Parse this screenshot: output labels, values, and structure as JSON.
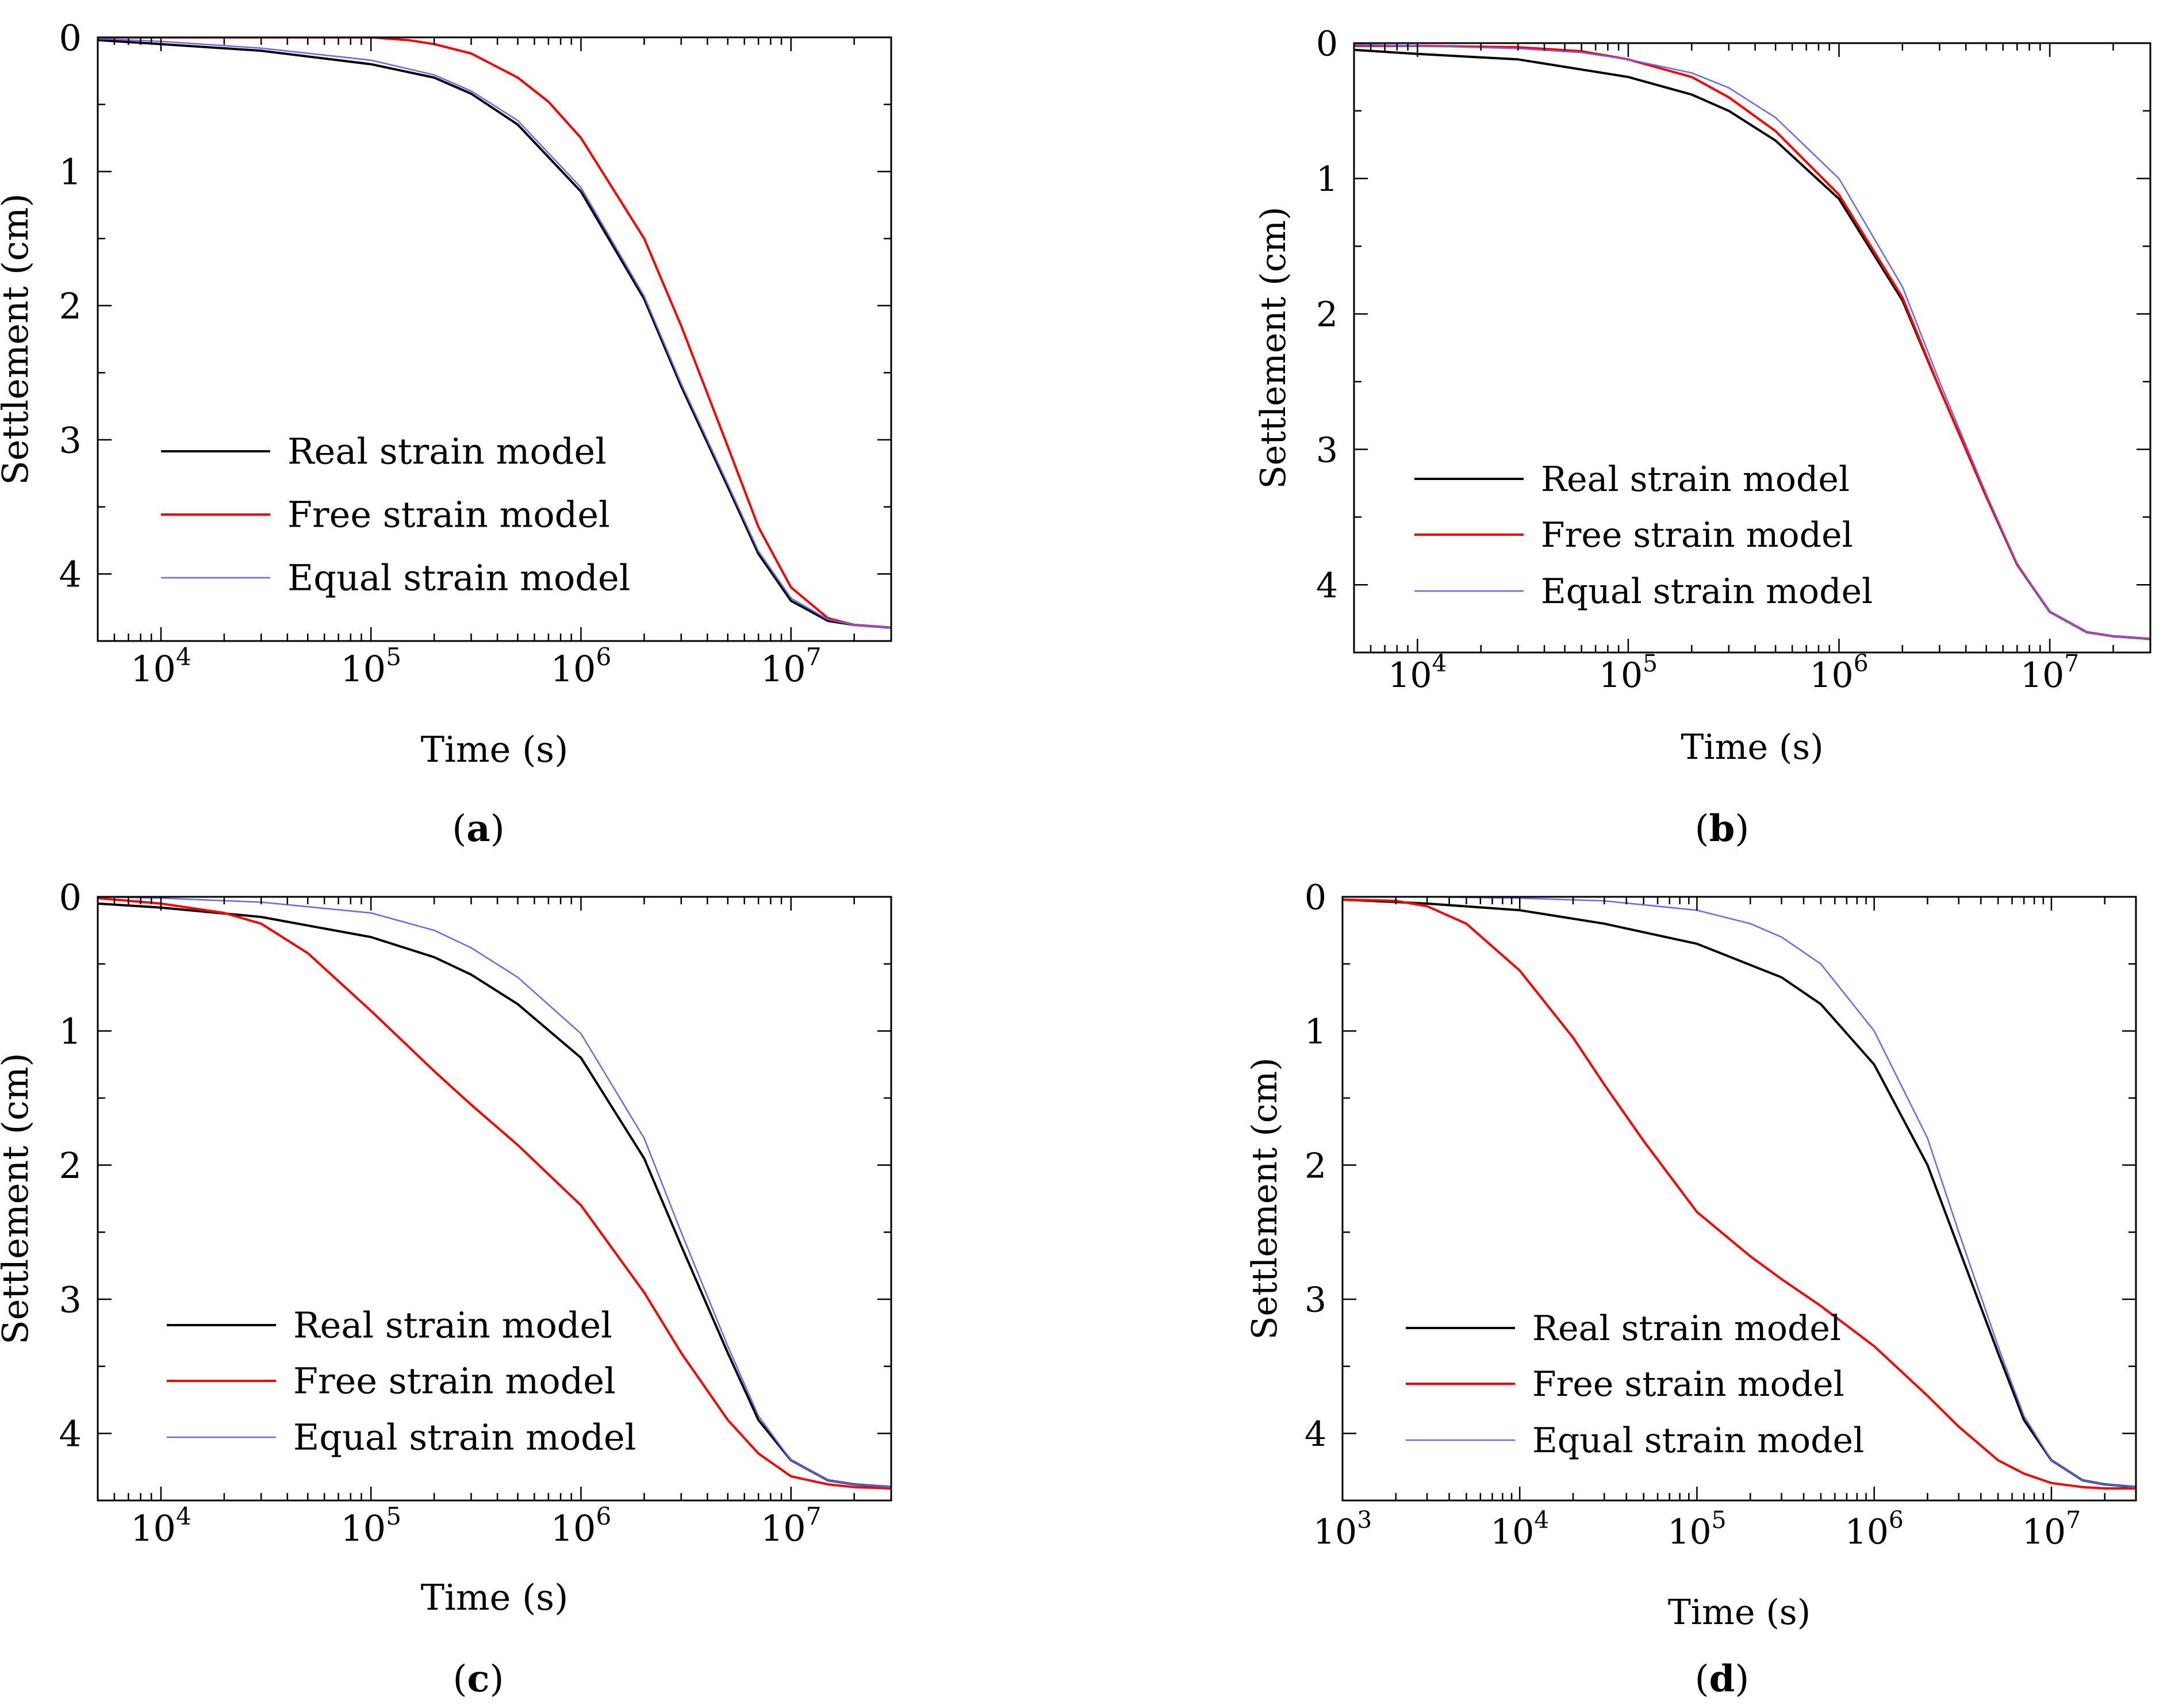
{
  "chart_data": [
    {
      "type": "line",
      "panel_label": "a",
      "xlabel": "Time (s)",
      "ylabel": "Settlement (cm)",
      "xscale": "log",
      "xlim": [
        5000,
        30000000
      ],
      "ylim": [
        0,
        4.5
      ],
      "y_inverted": true,
      "x_ticks": [
        {
          "base": "10",
          "exp": "4",
          "value": 10000
        },
        {
          "base": "10",
          "exp": "5",
          "value": 100000
        },
        {
          "base": "10",
          "exp": "6",
          "value": 1000000
        },
        {
          "base": "10",
          "exp": "7",
          "value": 10000000
        }
      ],
      "y_ticks": [
        "0",
        "1",
        "2",
        "3",
        "4"
      ],
      "legend_position": "center-left",
      "series": [
        {
          "name": "Real strain model",
          "color": "#000000",
          "x": [
            5000,
            10000,
            30000,
            100000,
            200000,
            300000,
            500000,
            1000000,
            2000000,
            3000000,
            5000000,
            7000000,
            10000000,
            15000000,
            20000000,
            30000000
          ],
          "values": [
            0.02,
            0.05,
            0.1,
            0.2,
            0.3,
            0.42,
            0.65,
            1.15,
            1.95,
            2.6,
            3.35,
            3.85,
            4.2,
            4.35,
            4.38,
            4.4
          ]
        },
        {
          "name": "Free strain model",
          "color": "#ff0000",
          "x": [
            5000,
            10000,
            50000,
            100000,
            150000,
            200000,
            300000,
            500000,
            700000,
            1000000,
            2000000,
            3000000,
            5000000,
            7000000,
            10000000,
            15000000,
            20000000,
            30000000
          ],
          "values": [
            0.0,
            0.0,
            0.0,
            0.0,
            0.02,
            0.05,
            0.12,
            0.3,
            0.48,
            0.75,
            1.5,
            2.15,
            3.05,
            3.65,
            4.1,
            4.33,
            4.38,
            4.4
          ]
        },
        {
          "name": "Equal strain model",
          "color": "#6666ff",
          "x": [
            5000,
            10000,
            30000,
            100000,
            200000,
            300000,
            500000,
            1000000,
            2000000,
            3000000,
            5000000,
            7000000,
            10000000,
            15000000,
            20000000,
            30000000
          ],
          "values": [
            0.01,
            0.03,
            0.08,
            0.17,
            0.28,
            0.4,
            0.62,
            1.12,
            1.93,
            2.58,
            3.33,
            3.83,
            4.18,
            4.34,
            4.38,
            4.4
          ]
        }
      ]
    },
    {
      "type": "line",
      "panel_label": "b",
      "xlabel": "Time (s)",
      "ylabel": "Settlement (cm)",
      "xscale": "log",
      "xlim": [
        5000,
        30000000
      ],
      "ylim": [
        0,
        4.5
      ],
      "y_inverted": true,
      "x_ticks": [
        {
          "base": "10",
          "exp": "4",
          "value": 10000
        },
        {
          "base": "10",
          "exp": "5",
          "value": 100000
        },
        {
          "base": "10",
          "exp": "6",
          "value": 1000000
        },
        {
          "base": "10",
          "exp": "7",
          "value": 10000000
        }
      ],
      "y_ticks": [
        "0",
        "1",
        "2",
        "3",
        "4"
      ],
      "legend_position": "center-left",
      "series": [
        {
          "name": "Real strain model",
          "color": "#000000",
          "x": [
            5000,
            10000,
            30000,
            100000,
            200000,
            300000,
            500000,
            1000000,
            2000000,
            3000000,
            5000000,
            7000000,
            10000000,
            15000000,
            20000000,
            30000000
          ],
          "values": [
            0.05,
            0.08,
            0.12,
            0.25,
            0.38,
            0.5,
            0.72,
            1.15,
            1.9,
            2.55,
            3.35,
            3.85,
            4.2,
            4.35,
            4.38,
            4.4
          ]
        },
        {
          "name": "Free strain model",
          "color": "#ff0000",
          "x": [
            5000,
            10000,
            30000,
            60000,
            100000,
            200000,
            300000,
            500000,
            1000000,
            2000000,
            3000000,
            5000000,
            7000000,
            10000000,
            15000000,
            20000000,
            30000000
          ],
          "values": [
            0.02,
            0.02,
            0.03,
            0.06,
            0.12,
            0.25,
            0.4,
            0.65,
            1.12,
            1.88,
            2.55,
            3.35,
            3.85,
            4.2,
            4.35,
            4.38,
            4.4
          ]
        },
        {
          "name": "Equal strain model",
          "color": "#6666ff",
          "x": [
            5000,
            10000,
            30000,
            60000,
            100000,
            200000,
            300000,
            500000,
            1000000,
            2000000,
            3000000,
            5000000,
            7000000,
            10000000,
            15000000,
            20000000,
            30000000
          ],
          "values": [
            0.01,
            0.02,
            0.04,
            0.07,
            0.12,
            0.22,
            0.33,
            0.55,
            1.0,
            1.8,
            2.5,
            3.33,
            3.84,
            4.2,
            4.35,
            4.38,
            4.4
          ]
        }
      ]
    },
    {
      "type": "line",
      "panel_label": "c",
      "xlabel": "Time (s)",
      "ylabel": "Settlement (cm)",
      "xscale": "log",
      "xlim": [
        5000,
        30000000
      ],
      "ylim": [
        0,
        4.5
      ],
      "y_inverted": true,
      "x_ticks": [
        {
          "base": "10",
          "exp": "4",
          "value": 10000
        },
        {
          "base": "10",
          "exp": "5",
          "value": 100000
        },
        {
          "base": "10",
          "exp": "6",
          "value": 1000000
        },
        {
          "base": "10",
          "exp": "7",
          "value": 10000000
        }
      ],
      "y_ticks": [
        "0",
        "1",
        "2",
        "3",
        "4"
      ],
      "legend_position": "bottom-left",
      "series": [
        {
          "name": "Real strain model",
          "color": "#000000",
          "x": [
            5000,
            10000,
            30000,
            100000,
            200000,
            300000,
            500000,
            1000000,
            2000000,
            3000000,
            5000000,
            7000000,
            10000000,
            15000000,
            20000000,
            30000000
          ],
          "values": [
            0.05,
            0.08,
            0.15,
            0.3,
            0.45,
            0.58,
            0.8,
            1.2,
            1.95,
            2.6,
            3.4,
            3.9,
            4.2,
            4.35,
            4.38,
            4.4
          ]
        },
        {
          "name": "Free strain model",
          "color": "#ff0000",
          "x": [
            5000,
            10000,
            20000,
            30000,
            50000,
            100000,
            200000,
            300000,
            500000,
            1000000,
            2000000,
            3000000,
            5000000,
            7000000,
            10000000,
            15000000,
            20000000,
            30000000
          ],
          "values": [
            0.01,
            0.05,
            0.12,
            0.2,
            0.42,
            0.85,
            1.3,
            1.55,
            1.85,
            2.3,
            2.95,
            3.4,
            3.9,
            4.15,
            4.32,
            4.38,
            4.4,
            4.41
          ]
        },
        {
          "name": "Equal strain model",
          "color": "#6666ff",
          "x": [
            5000,
            10000,
            30000,
            100000,
            200000,
            300000,
            500000,
            1000000,
            2000000,
            3000000,
            5000000,
            7000000,
            10000000,
            15000000,
            20000000,
            30000000
          ],
          "values": [
            0.0,
            0.01,
            0.04,
            0.12,
            0.25,
            0.38,
            0.6,
            1.02,
            1.8,
            2.5,
            3.35,
            3.87,
            4.2,
            4.35,
            4.38,
            4.4
          ]
        }
      ]
    },
    {
      "type": "line",
      "panel_label": "d",
      "xlabel": "Time (s)",
      "ylabel": "Settlement (cm)",
      "xscale": "log",
      "xlim": [
        1000,
        30000000
      ],
      "ylim": [
        0,
        4.5
      ],
      "y_inverted": true,
      "x_ticks": [
        {
          "base": "10",
          "exp": "3",
          "value": 1000
        },
        {
          "base": "10",
          "exp": "4",
          "value": 10000
        },
        {
          "base": "10",
          "exp": "5",
          "value": 100000
        },
        {
          "base": "10",
          "exp": "6",
          "value": 1000000
        },
        {
          "base": "10",
          "exp": "7",
          "value": 10000000
        }
      ],
      "y_ticks": [
        "0",
        "1",
        "2",
        "3",
        "4"
      ],
      "legend_position": "bottom-left",
      "series": [
        {
          "name": "Real strain model",
          "color": "#000000",
          "x": [
            1000,
            3000,
            10000,
            30000,
            100000,
            300000,
            500000,
            1000000,
            2000000,
            3000000,
            5000000,
            7000000,
            10000000,
            15000000,
            20000000,
            30000000
          ],
          "values": [
            0.02,
            0.05,
            0.1,
            0.2,
            0.35,
            0.6,
            0.8,
            1.25,
            2.0,
            2.62,
            3.4,
            3.9,
            4.2,
            4.35,
            4.38,
            4.4
          ]
        },
        {
          "name": "Free strain model",
          "color": "#ff0000",
          "x": [
            1000,
            2000,
            3000,
            5000,
            10000,
            20000,
            30000,
            50000,
            100000,
            200000,
            300000,
            500000,
            1000000,
            2000000,
            3000000,
            5000000,
            7000000,
            10000000,
            15000000,
            20000000,
            30000000
          ],
          "values": [
            0.02,
            0.03,
            0.07,
            0.2,
            0.55,
            1.05,
            1.4,
            1.82,
            2.35,
            2.68,
            2.85,
            3.05,
            3.35,
            3.72,
            3.95,
            4.2,
            4.3,
            4.37,
            4.4,
            4.41,
            4.41
          ]
        },
        {
          "name": "Equal strain model",
          "color": "#6666ff",
          "x": [
            1000,
            3000,
            10000,
            30000,
            100000,
            200000,
            300000,
            500000,
            1000000,
            2000000,
            3000000,
            5000000,
            7000000,
            10000000,
            15000000,
            20000000,
            30000000
          ],
          "values": [
            0.0,
            0.0,
            0.01,
            0.03,
            0.1,
            0.2,
            0.3,
            0.5,
            1.0,
            1.8,
            2.5,
            3.35,
            3.87,
            4.2,
            4.35,
            4.38,
            4.4
          ]
        }
      ]
    }
  ]
}
